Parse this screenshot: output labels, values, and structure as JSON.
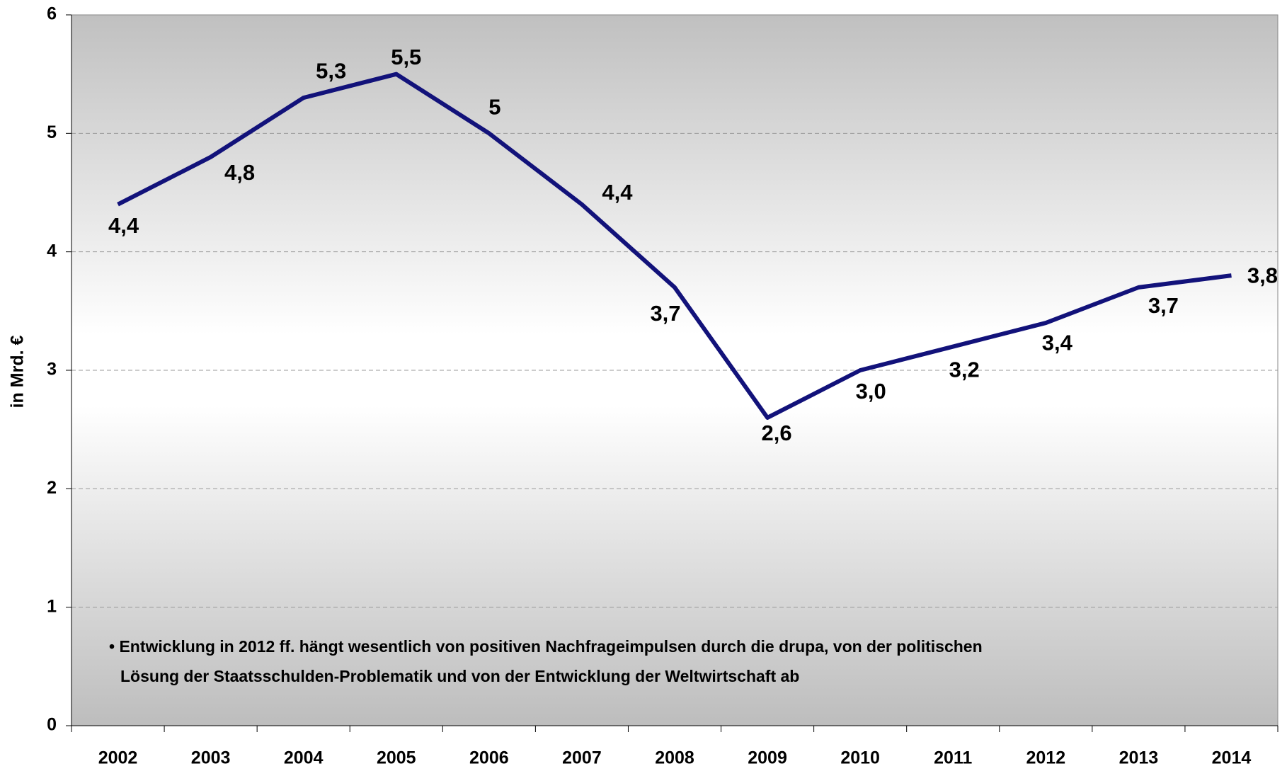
{
  "chart_data": {
    "type": "line",
    "y_label": "in Mrd. €",
    "categories": [
      "2002",
      "2003",
      "2004",
      "2005",
      "2006",
      "2007",
      "2008",
      "2009",
      "2010",
      "2011",
      "2012",
      "2013",
      "2014"
    ],
    "values": [
      4.4,
      4.8,
      5.3,
      5.5,
      5,
      4.4,
      3.7,
      2.6,
      3.0,
      3.2,
      3.4,
      3.7,
      3.8
    ],
    "value_labels": [
      "4,4",
      "4,8",
      "5,3",
      "5,5",
      "5",
      "4,4",
      "3,7",
      "2,6",
      "3,0",
      "3,2",
      "3,4",
      "3,7",
      "3,8"
    ],
    "color": "#12127a",
    "ylim": [
      0,
      6
    ],
    "yticks": [
      0,
      1,
      2,
      3,
      4,
      5,
      6
    ],
    "grid": true,
    "annotations": [
      "• Entwicklung in 2012 ff. hängt wesentlich von positiven Nachfrageimpulsen durch die drupa, von der politischen",
      "Lösung der Staatsschulden-Problematik und von der Entwicklung der Weltwirtschaft ab"
    ]
  }
}
